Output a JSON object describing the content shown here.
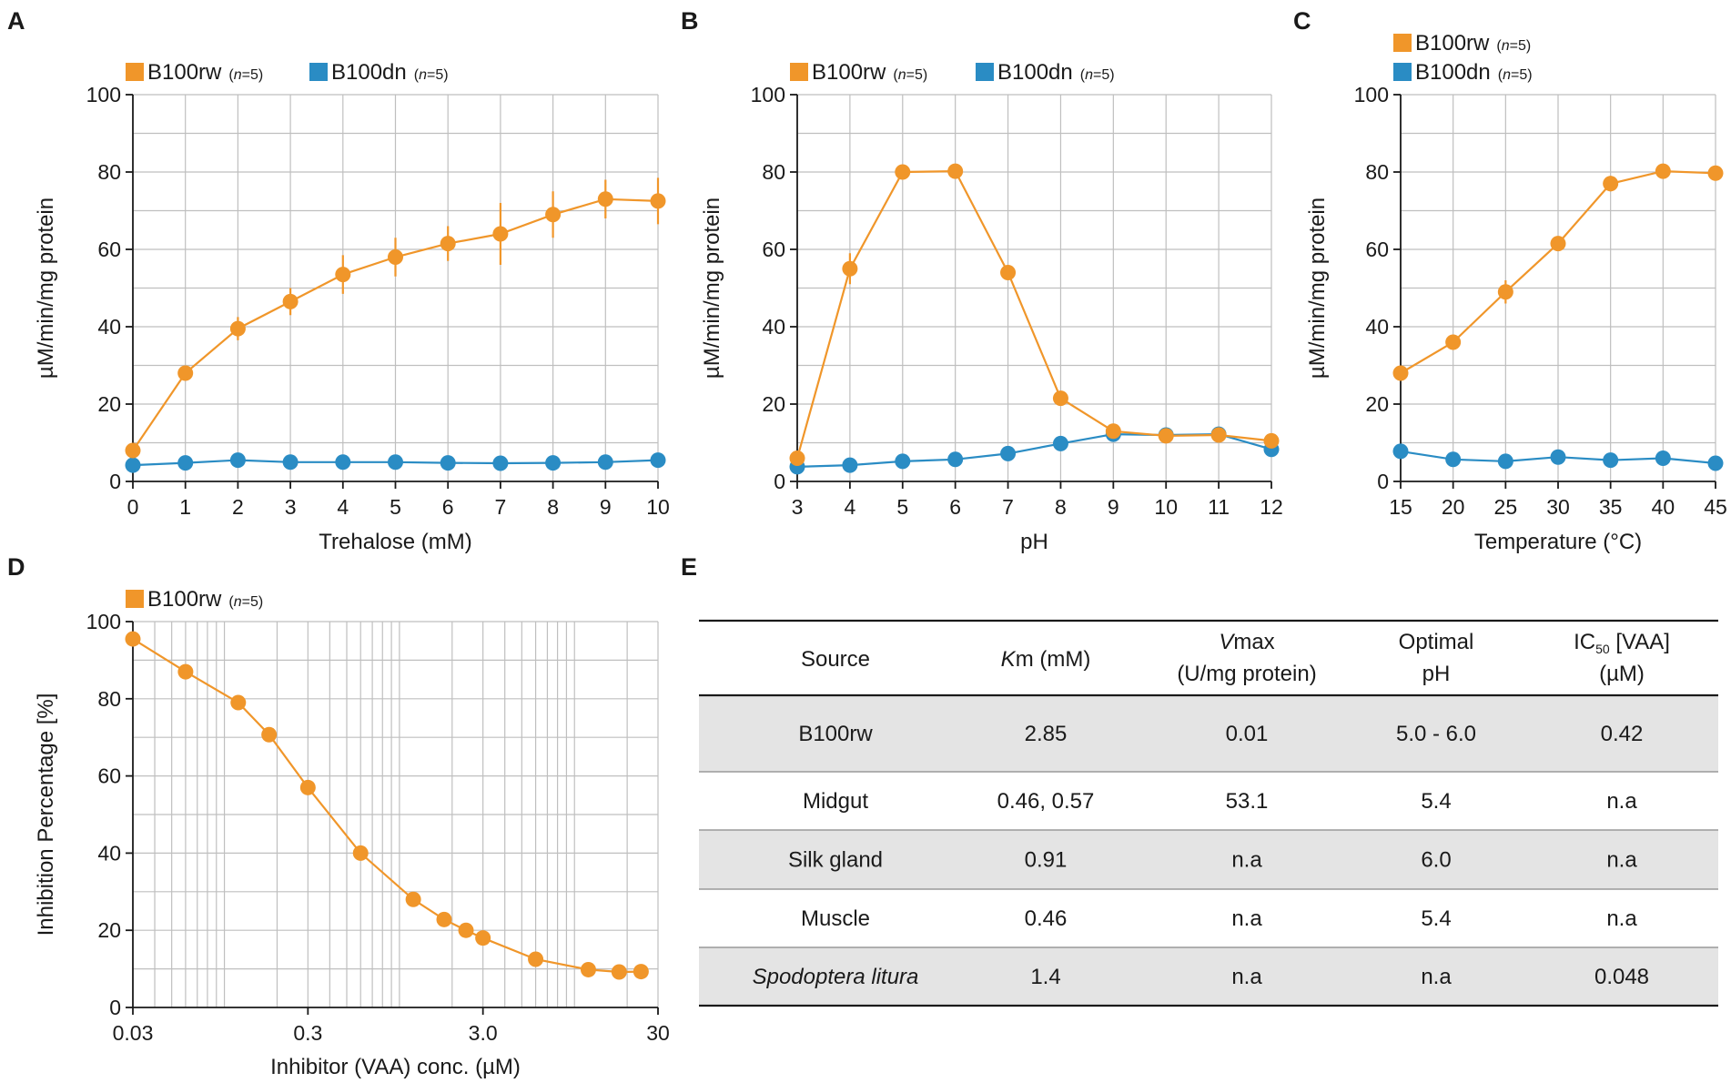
{
  "colors": {
    "rw": "#F0962A",
    "dn": "#2A8CC4",
    "grid": "#BFBFBF",
    "axis": "#1a1a1a",
    "row_shade": "#E4E4E4"
  },
  "legend": {
    "rw": "B100rw",
    "dn": "B100dn",
    "n_prefix": "n",
    "n_suffix": "=5"
  },
  "panels": {
    "A": {
      "letter": "A",
      "chart_data": {
        "type": "line",
        "title": "",
        "xlabel": "Trehalose (mM)",
        "ylabel": "µM/min/mg protein",
        "x": [
          0,
          1,
          2,
          3,
          4,
          5,
          6,
          7,
          8,
          9,
          10
        ],
        "x_tick_labels": [
          "0",
          "1",
          "2",
          "3",
          "4",
          "5",
          "6",
          "7",
          "8",
          "9",
          "10"
        ],
        "xlim": [
          0,
          10
        ],
        "ylim": [
          0,
          100
        ],
        "y_ticks": [
          0,
          20,
          40,
          60,
          80,
          100
        ],
        "series": [
          {
            "name": "B100rw",
            "key": "rw",
            "values": [
              8,
              28,
              39.5,
              46.5,
              53.5,
              58,
              61.5,
              64,
              69,
              73,
              72.5
            ],
            "error": [
              1,
              1.5,
              3,
              3.5,
              5,
              5,
              4.5,
              8,
              6,
              5,
              6
            ]
          },
          {
            "name": "B100dn",
            "key": "dn",
            "values": [
              4.2,
              4.8,
              5.5,
              5.0,
              5.0,
              5.0,
              4.8,
              4.7,
              4.8,
              5.0,
              5.5
            ],
            "error": [
              0,
              0,
              0,
              0,
              0,
              0,
              0,
              0,
              0,
              0,
              0
            ]
          }
        ]
      }
    },
    "B": {
      "letter": "B",
      "chart_data": {
        "type": "line",
        "title": "",
        "xlabel": "pH",
        "ylabel": "µM/min/mg protein",
        "x": [
          3,
          4,
          5,
          6,
          7,
          8,
          9,
          10,
          11,
          12
        ],
        "x_tick_labels": [
          "3",
          "4",
          "5",
          "6",
          "7",
          "8",
          "9",
          "10",
          "11",
          "12"
        ],
        "xlim": [
          3,
          12
        ],
        "ylim": [
          0,
          100
        ],
        "y_ticks": [
          0,
          20,
          40,
          60,
          80,
          100
        ],
        "series": [
          {
            "name": "B100rw",
            "key": "rw",
            "values": [
              6,
              55,
              80,
              80.2,
              54,
              21.5,
              13,
              11.8,
              12,
              10.5
            ],
            "error": [
              0,
              4,
              0,
              0,
              0,
              0,
              0,
              0,
              0,
              0
            ]
          },
          {
            "name": "B100dn",
            "key": "dn",
            "values": [
              3.8,
              4.2,
              5.2,
              5.7,
              7.2,
              9.8,
              12.2,
              12,
              12.2,
              8.3
            ],
            "error": [
              0,
              0,
              0,
              0,
              0,
              0,
              0,
              0,
              0,
              0
            ]
          }
        ]
      }
    },
    "C": {
      "letter": "C",
      "chart_data": {
        "type": "line",
        "title": "",
        "xlabel": "Temperature (°C)",
        "ylabel": "µM/min/mg protein",
        "x": [
          15,
          20,
          25,
          30,
          35,
          40,
          45
        ],
        "x_tick_labels": [
          "15",
          "20",
          "25",
          "30",
          "35",
          "40",
          "45"
        ],
        "xlim": [
          15,
          45
        ],
        "ylim": [
          0,
          100
        ],
        "y_ticks": [
          0,
          20,
          40,
          60,
          80,
          100
        ],
        "series": [
          {
            "name": "B100rw",
            "key": "rw",
            "values": [
              28,
              36,
              49,
              61.5,
              77,
              80.2,
              79.7
            ],
            "error": [
              0,
              0,
              3,
              0,
              2,
              0,
              0
            ]
          },
          {
            "name": "B100dn",
            "key": "dn",
            "values": [
              7.8,
              5.7,
              5.2,
              6.3,
              5.5,
              6,
              4.7
            ],
            "error": [
              0,
              0,
              0,
              0,
              0,
              0,
              0
            ]
          }
        ]
      }
    },
    "D": {
      "letter": "D",
      "chart_data": {
        "type": "line",
        "title": "",
        "xlabel": "Inhibitor (VAA) conc. (µM)",
        "ylabel": "Inhibition Percentage [%]",
        "x_scale": "log",
        "x": [
          0.03,
          0.06,
          0.12,
          0.18,
          0.3,
          0.6,
          1.2,
          1.8,
          2.4,
          3.0,
          6.0,
          12,
          18,
          24
        ],
        "x_ticks": [
          0.03,
          0.3,
          3.0,
          30
        ],
        "x_tick_labels": [
          "0.03",
          "0.3",
          "3.0",
          "30"
        ],
        "xlim": [
          0.03,
          30
        ],
        "ylim": [
          0,
          100
        ],
        "y_ticks": [
          0,
          20,
          40,
          60,
          80,
          100
        ],
        "series": [
          {
            "name": "B100rw",
            "key": "rw",
            "values": [
              95.5,
              87,
              79,
              70.7,
              57,
              40,
              28,
              22.8,
              20,
              18,
              12.5,
              9.8,
              9.2,
              9.3
            ],
            "error": [
              0,
              0,
              0,
              0,
              0,
              0,
              0,
              0,
              0,
              0,
              0,
              0,
              0,
              0
            ]
          }
        ]
      }
    },
    "E": {
      "letter": "E",
      "chart_data": {
        "type": "table",
        "headers": [
          {
            "lines": [
              "Source"
            ]
          },
          {
            "lines": [
              "Km (mM)"
            ],
            "italic_part": "K",
            "rest": "m (mM)"
          },
          {
            "lines": [
              "Vmax",
              "(U/mg protein)"
            ],
            "italic_part": "V",
            "rest": "max"
          },
          {
            "lines": [
              "Optimal",
              "pH"
            ]
          },
          {
            "lines": [
              "IC50 [VAA]",
              "(µM)"
            ],
            "base": "IC",
            "subscript": "50",
            "rest": " [VAA]"
          }
        ],
        "rows": [
          [
            "B100rw",
            "2.85",
            "0.01",
            "5.0 - 6.0",
            "0.42"
          ],
          [
            "Midgut",
            "0.46, 0.57",
            "53.1",
            "5.4",
            "n.a"
          ],
          [
            "Silk gland",
            "0.91",
            "n.a",
            "6.0",
            "n.a"
          ],
          [
            "Muscle",
            "0.46",
            "n.a",
            "5.4",
            "n.a"
          ],
          [
            "Spodoptera litura",
            "1.4",
            "n.a",
            "n.a",
            "0.048"
          ]
        ],
        "italic_rows": [
          4
        ],
        "shaded_rows": [
          0,
          2,
          4
        ]
      }
    }
  }
}
